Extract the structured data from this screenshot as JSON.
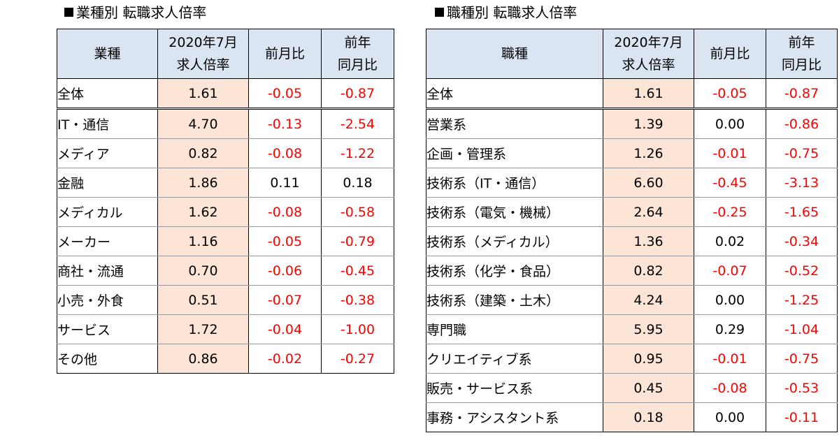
{
  "left": {
    "heading": "業種別 転職求人倍率",
    "headers": {
      "name": "業種",
      "ratio_line1": "2020年7月",
      "ratio_line2": "求人倍率",
      "mom": "前月比",
      "yoy_line1": "前年",
      "yoy_line2": "同月比"
    },
    "rows": [
      {
        "name": "全体",
        "ratio": "1.61",
        "mom": "-0.05",
        "yoy": "-0.87"
      },
      {
        "name": "IT・通信",
        "ratio": "4.70",
        "mom": "-0.13",
        "yoy": "-2.54"
      },
      {
        "name": "メディア",
        "ratio": "0.82",
        "mom": "-0.08",
        "yoy": "-1.22"
      },
      {
        "name": "金融",
        "ratio": "1.86",
        "mom": "0.11",
        "yoy": "0.18"
      },
      {
        "name": "メディカル",
        "ratio": "1.62",
        "mom": "-0.08",
        "yoy": "-0.58"
      },
      {
        "name": "メーカー",
        "ratio": "1.16",
        "mom": "-0.05",
        "yoy": "-0.79"
      },
      {
        "name": "商社・流通",
        "ratio": "0.70",
        "mom": "-0.06",
        "yoy": "-0.45"
      },
      {
        "name": "小売・外食",
        "ratio": "0.51",
        "mom": "-0.07",
        "yoy": "-0.38"
      },
      {
        "name": "サービス",
        "ratio": "1.72",
        "mom": "-0.04",
        "yoy": "-1.00"
      },
      {
        "name": "その他",
        "ratio": "0.86",
        "mom": "-0.02",
        "yoy": "-0.27"
      }
    ]
  },
  "right": {
    "heading": "職種別 転職求人倍率",
    "headers": {
      "name": "職種",
      "ratio_line1": "2020年7月",
      "ratio_line2": "求人倍率",
      "mom": "前月比",
      "yoy_line1": "前年",
      "yoy_line2": "同月比"
    },
    "rows": [
      {
        "name": "全体",
        "ratio": "1.61",
        "mom": "-0.05",
        "yoy": "-0.87"
      },
      {
        "name": "営業系",
        "ratio": "1.39",
        "mom": "0.00",
        "yoy": "-0.86"
      },
      {
        "name": "企画・管理系",
        "ratio": "1.26",
        "mom": "-0.01",
        "yoy": "-0.75"
      },
      {
        "name": "技術系（IT・通信）",
        "ratio": "6.60",
        "mom": "-0.45",
        "yoy": "-3.13"
      },
      {
        "name": "技術系（電気・機械）",
        "ratio": "2.64",
        "mom": "-0.25",
        "yoy": "-1.65"
      },
      {
        "name": "技術系（メディカル）",
        "ratio": "1.36",
        "mom": "0.02",
        "yoy": "-0.34"
      },
      {
        "name": "技術系（化学・食品）",
        "ratio": "0.82",
        "mom": "-0.07",
        "yoy": "-0.52"
      },
      {
        "name": "技術系（建築・土木）",
        "ratio": "4.24",
        "mom": "0.00",
        "yoy": "-1.25"
      },
      {
        "name": "専門職",
        "ratio": "5.95",
        "mom": "0.29",
        "yoy": "-1.04"
      },
      {
        "name": "クリエイティブ系",
        "ratio": "0.95",
        "mom": "-0.01",
        "yoy": "-0.75"
      },
      {
        "name": "販売・サービス系",
        "ratio": "0.45",
        "mom": "-0.08",
        "yoy": "-0.53"
      },
      {
        "name": "事務・アシスタント系",
        "ratio": "0.18",
        "mom": "0.00",
        "yoy": "-0.11"
      }
    ]
  },
  "colors": {
    "header_bg": "#dbe5f1",
    "ratio_bg": "#fce4d6",
    "negative_text": "#ff0000"
  }
}
